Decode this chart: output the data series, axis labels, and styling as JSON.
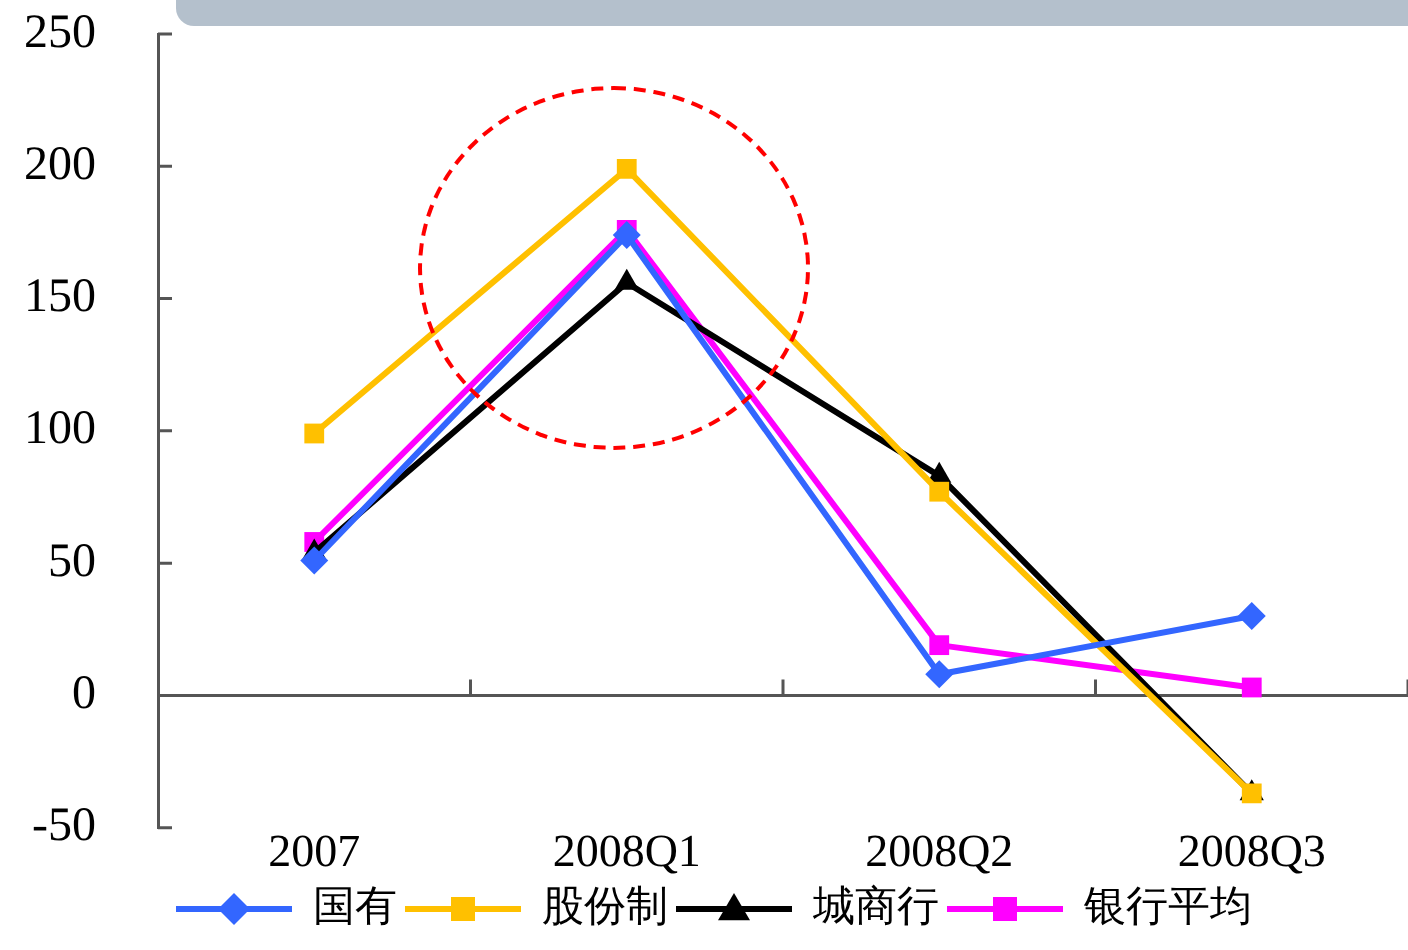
{
  "chart_data": {
    "type": "line",
    "categories": [
      "2007",
      "2008Q1",
      "2008Q2",
      "2008Q3"
    ],
    "series": [
      {
        "name": "国有",
        "color": "#3366ff",
        "marker": "diamond",
        "values": [
          51,
          174,
          8,
          30
        ]
      },
      {
        "name": "股份制",
        "color": "#ffc000",
        "marker": "square",
        "values": [
          99,
          199,
          77,
          -37
        ]
      },
      {
        "name": "城商行",
        "color": "#000000",
        "marker": "triangle",
        "values": [
          54,
          156,
          83,
          -37
        ]
      },
      {
        "name": "银行平均",
        "color": "#ff00ff",
        "marker": "square",
        "values": [
          58,
          176,
          19,
          3
        ]
      }
    ],
    "ylim": [
      -50,
      250
    ],
    "yticks": [
      -50,
      0,
      50,
      100,
      150,
      200,
      250
    ],
    "legend": "bottom"
  }
}
